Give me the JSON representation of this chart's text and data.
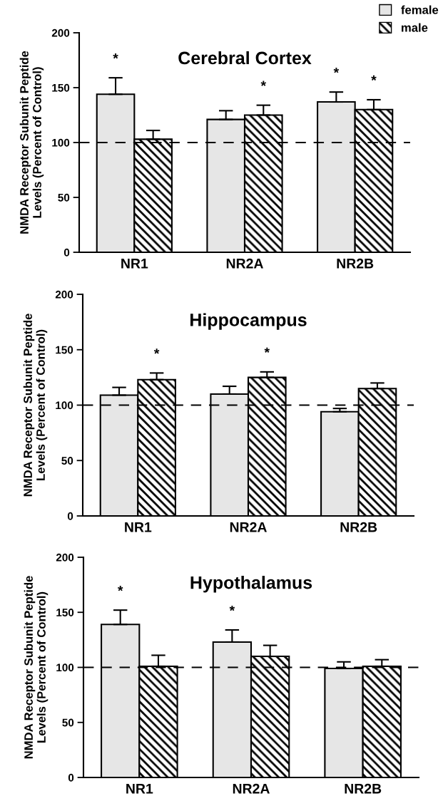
{
  "chart_data": [
    {
      "type": "bar",
      "title": "Cerebral Cortex",
      "ylabel": "NMDA Receptor Subunit Peptide\nLevels (Percent of Control)",
      "categories": [
        "NR1",
        "NR2A",
        "NR2B"
      ],
      "ylim": [
        0,
        200
      ],
      "yticks": [
        0,
        50,
        100,
        150,
        200
      ],
      "grid": false,
      "legend": "top right",
      "series": [
        {
          "name": "female",
          "color": "#e6e6e6",
          "values": [
            144,
            121,
            137
          ],
          "errors": [
            15,
            8,
            9
          ],
          "value_labels": [
            "*",
            null,
            "*"
          ]
        },
        {
          "name": "male",
          "color": "#000000",
          "values": [
            103,
            125,
            130
          ],
          "errors": [
            8,
            9,
            9
          ],
          "value_labels": [
            null,
            "*",
            "*"
          ]
        }
      ],
      "ref_lines": [
        {
          "axis": "y",
          "value": 100,
          "color": "#000000",
          "line_style": "dashed"
        }
      ]
    },
    {
      "type": "bar",
      "title": "Hippocampus",
      "ylabel": "NMDA Receptor Subunit Peptide\nLevels (Percent of Control)",
      "categories": [
        "NR1",
        "NR2A",
        "NR2B"
      ],
      "ylim": [
        0,
        200
      ],
      "yticks": [
        0,
        50,
        100,
        150,
        200
      ],
      "grid": false,
      "series": [
        {
          "color": "#e6e6e6",
          "values": [
            109,
            110,
            94
          ],
          "errors": [
            7,
            7,
            3
          ]
        },
        {
          "color": "#000000",
          "values": [
            123,
            125,
            115
          ],
          "errors": [
            6,
            5,
            5
          ],
          "value_labels": [
            "*",
            "*",
            null
          ]
        }
      ],
      "ref_lines": [
        {
          "axis": "y",
          "value": 100,
          "color": "#000000",
          "line_style": "dashed"
        }
      ]
    },
    {
      "type": "bar",
      "title": "Hypothalamus",
      "ylabel": "NMDA Receptor Subunit Peptide\nLevels (Percent of Control)",
      "categories": [
        "NR1",
        "NR2A",
        "NR2B"
      ],
      "ylim": [
        0,
        200
      ],
      "yticks": [
        0,
        50,
        100,
        150,
        200
      ],
      "grid": false,
      "series": [
        {
          "color": "#e6e6e6",
          "values": [
            139,
            123,
            99
          ],
          "errors": [
            13,
            11,
            6
          ],
          "value_labels": [
            "*",
            "*",
            null
          ]
        },
        {
          "color": "#000000",
          "values": [
            101,
            110,
            101
          ],
          "errors": [
            10,
            10,
            6
          ]
        }
      ],
      "ref_lines": [
        {
          "axis": "y",
          "value": 100,
          "color": "#000000",
          "line_style": "dashed"
        }
      ]
    }
  ]
}
